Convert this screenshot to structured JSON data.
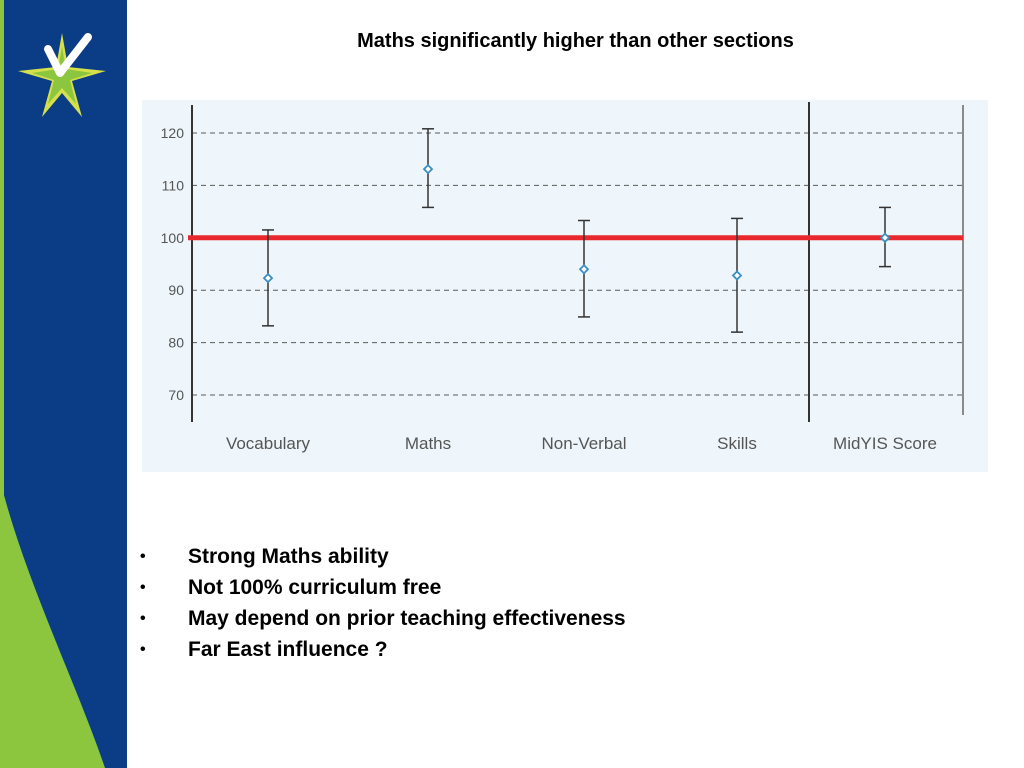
{
  "slide": {
    "title": "Maths significantly higher than other sections",
    "bullet_marker": "•",
    "bullets": [
      "Strong Maths ability",
      "Not 100% curriculum free",
      "May depend on prior teaching effectiveness",
      "Far East influence ?"
    ],
    "colors": {
      "side_band": "#0b3d86",
      "accent_green": "#8cc63f",
      "logo_yellow": "#d6e04a",
      "chart_background": "#eef6fb",
      "reference_line": "#e8282c",
      "point_marker": "#3a8ec2"
    }
  },
  "chart_data": {
    "type": "scatter",
    "subtype": "point estimates with error bars",
    "categories": [
      "Vocabulary",
      "Maths",
      "Non-Verbal",
      "Skills",
      "MidYIS Score"
    ],
    "points": [
      {
        "category": "Vocabulary",
        "value": 92.3,
        "low": 83.2,
        "high": 101.5
      },
      {
        "category": "Maths",
        "value": 113.1,
        "low": 105.8,
        "high": 120.8
      },
      {
        "category": "Non-Verbal",
        "value": 94.0,
        "low": 84.9,
        "high": 103.3
      },
      {
        "category": "Skills",
        "value": 92.8,
        "low": 82.0,
        "high": 103.7
      },
      {
        "category": "MidYIS Score",
        "value": 100.0,
        "low": 94.5,
        "high": 105.8
      }
    ],
    "reference_line": 100,
    "yticks": [
      70,
      80,
      90,
      100,
      110,
      120
    ],
    "ylim": [
      65,
      125
    ],
    "grid": "dashed horizontal",
    "separator_before": "MidYIS Score",
    "legend": "none"
  }
}
